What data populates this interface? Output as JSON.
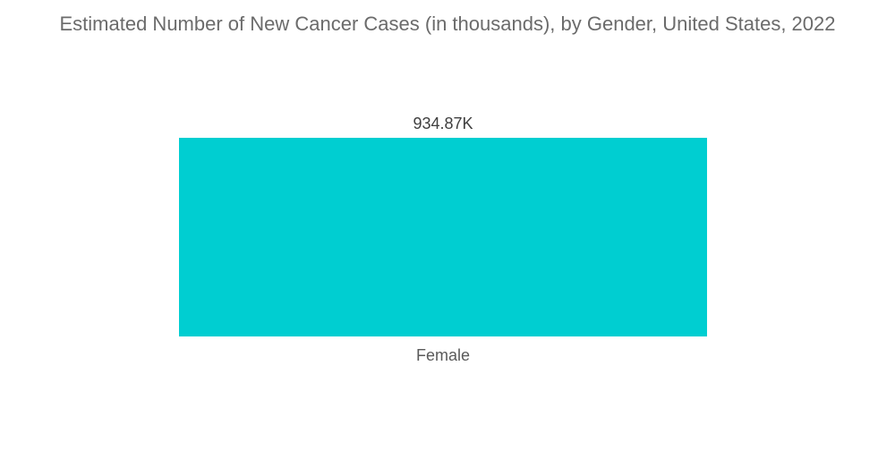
{
  "chart_data": {
    "type": "bar",
    "title": "Estimated Number of New Cancer Cases (in thousands), by Gender, United States, 2022",
    "categories": [
      "Female"
    ],
    "values": [
      934.87
    ],
    "data_labels": [
      "934.87K"
    ],
    "xlabel": "",
    "ylabel": "",
    "ylim": [
      0,
      934.87
    ],
    "grid": false,
    "legend": "none",
    "colors": {
      "bar": "#00ced1"
    }
  }
}
